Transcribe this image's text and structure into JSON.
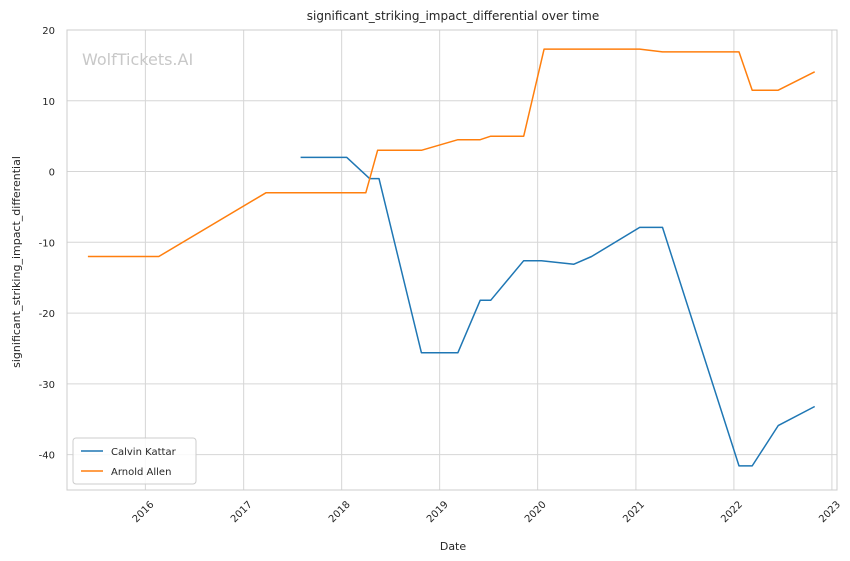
{
  "chart_data": {
    "type": "line",
    "title": "significant_striking_impact_differential over time",
    "xlabel": "Date",
    "ylabel": "significant_striking_impact_differential",
    "watermark": "WolfTickets.AI",
    "xlim": [
      "2015-03-15",
      "2023-01-20"
    ],
    "ylim": [
      -45,
      20
    ],
    "x_ticks": [
      "2016",
      "2017",
      "2018",
      "2019",
      "2020",
      "2021",
      "2022",
      "2023"
    ],
    "y_ticks": [
      20,
      10,
      0,
      -10,
      -20,
      -30,
      -40
    ],
    "grid": true,
    "legend_position": "lower-left",
    "series": [
      {
        "name": "Calvin Kattar",
        "color": "#1f77b4",
        "points": [
          [
            "2017-08-01",
            2
          ],
          [
            "2018-01-20",
            2
          ],
          [
            "2018-04-15",
            -1
          ],
          [
            "2018-05-20",
            -1
          ],
          [
            "2018-10-25",
            -25.6
          ],
          [
            "2019-03-10",
            -25.6
          ],
          [
            "2019-06-01",
            -18.2
          ],
          [
            "2019-07-10",
            -18.2
          ],
          [
            "2019-11-10",
            -12.6
          ],
          [
            "2020-01-15",
            -12.6
          ],
          [
            "2020-05-15",
            -13.1
          ],
          [
            "2020-07-20",
            -12
          ],
          [
            "2021-01-15",
            -7.9
          ],
          [
            "2021-04-10",
            -7.9
          ],
          [
            "2022-01-20",
            -41.6
          ],
          [
            "2022-03-10",
            -41.6
          ],
          [
            "2022-06-15",
            -35.9
          ],
          [
            "2022-10-29",
            -33.2
          ]
        ]
      },
      {
        "name": "Arnold Allen",
        "color": "#ff7f0e",
        "points": [
          [
            "2015-06-01",
            -12
          ],
          [
            "2016-02-20",
            -12
          ],
          [
            "2017-03-25",
            -3
          ],
          [
            "2018-04-01",
            -3
          ],
          [
            "2018-05-15",
            3
          ],
          [
            "2018-10-25",
            3
          ],
          [
            "2019-03-10",
            4.5
          ],
          [
            "2019-06-01",
            4.5
          ],
          [
            "2019-07-10",
            5
          ],
          [
            "2019-11-10",
            5
          ],
          [
            "2020-01-25",
            17.3
          ],
          [
            "2021-01-15",
            17.3
          ],
          [
            "2021-04-10",
            16.9
          ],
          [
            "2022-01-20",
            16.9
          ],
          [
            "2022-03-10",
            11.5
          ],
          [
            "2022-06-15",
            11.5
          ],
          [
            "2022-10-29",
            14.1
          ]
        ]
      }
    ]
  }
}
